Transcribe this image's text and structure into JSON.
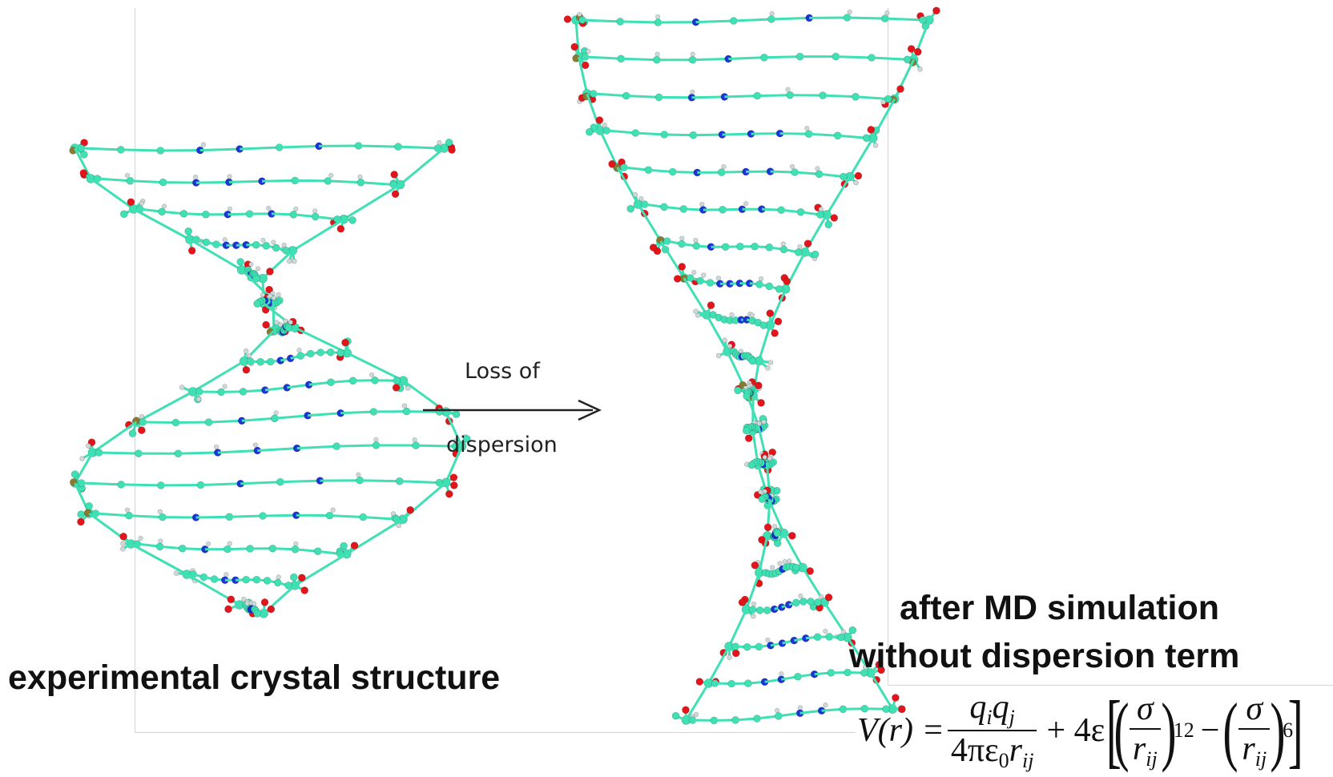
{
  "left_caption": "experimental crystal structure",
  "right_caption": {
    "line1": "after MD simulation",
    "line2": "without dispersion term"
  },
  "arrow": {
    "label_top": "Loss of",
    "label_bottom": "dispersion"
  },
  "formula": {
    "lhs": "V(r) =",
    "coulomb_numerator": "q",
    "coulomb_denominator": "4πε",
    "term_coeff": "+ 4ε",
    "sigma": "σ",
    "r": "r",
    "ij": "ij",
    "i": "i",
    "j": "j",
    "zero": "0",
    "exp_repulsive": "12",
    "exp_attractive": "6",
    "minus": "−"
  },
  "colors": {
    "carbon": "#3fe0b4",
    "nitrogen": "#1c33d6",
    "oxygen": "#e3151b",
    "phosphorus": "#8a7a2e",
    "hydrogen": "#cfd8d8"
  }
}
